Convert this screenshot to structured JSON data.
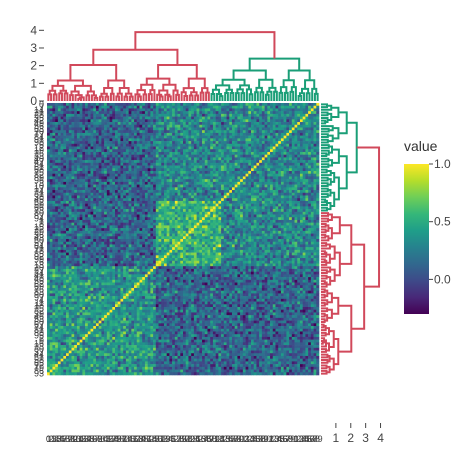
{
  "chart_data": {
    "type": "heatmap",
    "description_of_values": "correlation matrix of samples, clustered; diagonal = 1.0",
    "n": 100,
    "clusters": [
      {
        "name": "teal",
        "size": 40,
        "color": "#1a9e77"
      },
      {
        "name": "pink",
        "size": 60,
        "color": "#d1495b"
      }
    ],
    "value_range": [
      -0.3,
      1.0
    ],
    "colorbar": {
      "title": "value",
      "ticks": [
        {
          "value": 0.0,
          "label": "0.0"
        },
        {
          "value": 0.5,
          "label": "0.5"
        },
        {
          "value": 1.0,
          "label": "1.0"
        }
      ]
    },
    "top_dendrogram_axis": {
      "ticks": [
        {
          "value": 0,
          "label": "0"
        },
        {
          "value": 1,
          "label": "1"
        },
        {
          "value": 2,
          "label": "2"
        },
        {
          "value": 3,
          "label": "3"
        },
        {
          "value": 4,
          "label": "4"
        }
      ],
      "range": [
        0,
        4.3
      ]
    },
    "right_dendrogram_axis": {
      "ticks": [
        {
          "value": 1,
          "label": "1"
        },
        {
          "value": 2,
          "label": "2"
        },
        {
          "value": 3,
          "label": "3"
        },
        {
          "value": 4,
          "label": "4"
        }
      ],
      "range": [
        0,
        4.3
      ]
    },
    "row_labels_visible": [
      "0",
      "1",
      "2",
      "3",
      "4",
      "5",
      "6",
      "7",
      "8",
      "9",
      "10",
      "11",
      "12",
      "13",
      "14",
      "15",
      "16",
      "17",
      "18",
      "19",
      "20",
      "21",
      "22",
      "23",
      "24",
      "25",
      "26",
      "27",
      "28",
      "29",
      "30",
      "31",
      "32",
      "33",
      "34",
      "35",
      "36",
      "37",
      "38",
      "39",
      "40",
      "41",
      "42",
      "43",
      "44",
      "45",
      "46",
      "47",
      "48",
      "49",
      "50",
      "51",
      "52",
      "53",
      "54",
      "55",
      "56",
      "57",
      "58",
      "59",
      "60",
      "61",
      "62",
      "63",
      "64",
      "65",
      "66",
      "67",
      "68",
      "69",
      "70",
      "71",
      "72",
      "73",
      "74",
      "75",
      "76",
      "77",
      "78",
      "79",
      "80",
      "81",
      "82",
      "83",
      "84",
      "85",
      "86",
      "87",
      "88",
      "89",
      "90",
      "91",
      "92",
      "93",
      "94",
      "95",
      "96",
      "97",
      "98",
      "99"
    ],
    "block_means": {
      "teal_teal": 0.38,
      "pink_pink": 0.3,
      "teal_pink": 0.12,
      "inner_high_block": 0.55
    }
  }
}
